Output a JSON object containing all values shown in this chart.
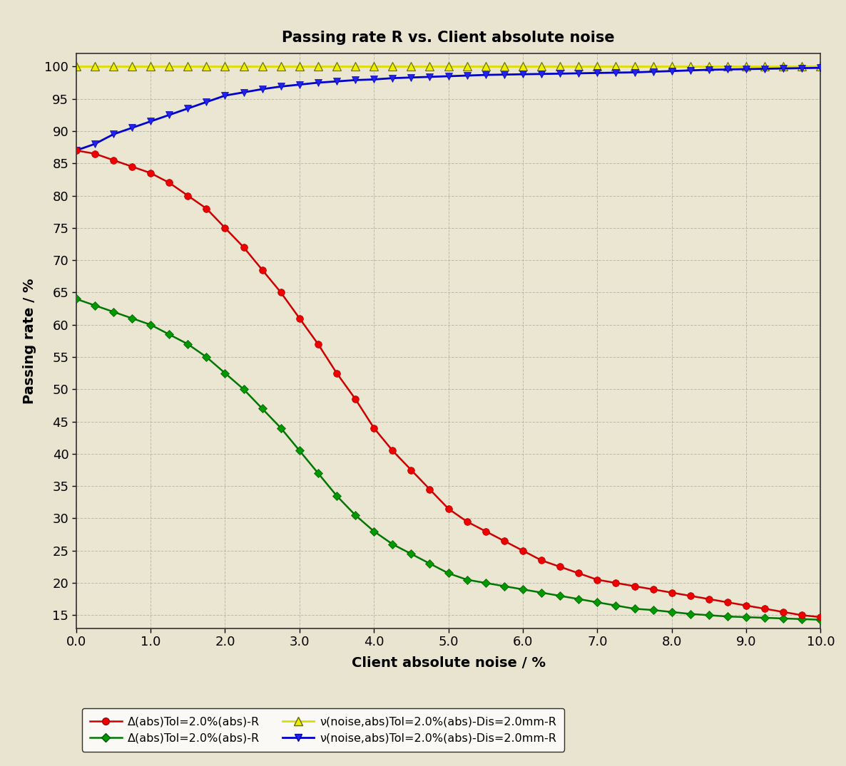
{
  "title": "Passing rate R vs. Client absolute noise",
  "xlabel": "Client absolute noise / %",
  "ylabel": "Passing rate / %",
  "background_color": "#e8e4d0",
  "plot_bg_color": "#eae6d2",
  "xlim": [
    0.0,
    10.0
  ],
  "ylim": [
    13,
    102
  ],
  "yticks": [
    15,
    20,
    25,
    30,
    35,
    40,
    45,
    50,
    55,
    60,
    65,
    70,
    75,
    80,
    85,
    90,
    95,
    100
  ],
  "xticks": [
    0.0,
    1.0,
    2.0,
    3.0,
    4.0,
    5.0,
    6.0,
    7.0,
    8.0,
    9.0,
    10.0
  ],
  "red_x": [
    0.0,
    0.25,
    0.5,
    0.75,
    1.0,
    1.25,
    1.5,
    1.75,
    2.0,
    2.25,
    2.5,
    2.75,
    3.0,
    3.25,
    3.5,
    3.75,
    4.0,
    4.25,
    4.5,
    4.75,
    5.0,
    5.25,
    5.5,
    5.75,
    6.0,
    6.25,
    6.5,
    6.75,
    7.0,
    7.25,
    7.5,
    7.75,
    8.0,
    8.25,
    8.5,
    8.75,
    9.0,
    9.25,
    9.5,
    9.75,
    10.0
  ],
  "red_y": [
    87.0,
    86.5,
    85.5,
    84.5,
    83.5,
    82.0,
    80.0,
    78.0,
    75.0,
    72.0,
    68.5,
    65.0,
    61.0,
    57.0,
    52.5,
    48.5,
    44.0,
    40.5,
    37.5,
    34.5,
    31.5,
    29.5,
    28.0,
    26.5,
    25.0,
    23.5,
    22.5,
    21.5,
    20.5,
    20.0,
    19.5,
    19.0,
    18.5,
    18.0,
    17.5,
    17.0,
    16.5,
    16.0,
    15.5,
    15.0,
    14.7
  ],
  "green_x": [
    0.0,
    0.25,
    0.5,
    0.75,
    1.0,
    1.25,
    1.5,
    1.75,
    2.0,
    2.25,
    2.5,
    2.75,
    3.0,
    3.25,
    3.5,
    3.75,
    4.0,
    4.25,
    4.5,
    4.75,
    5.0,
    5.25,
    5.5,
    5.75,
    6.0,
    6.25,
    6.5,
    6.75,
    7.0,
    7.25,
    7.5,
    7.75,
    8.0,
    8.25,
    8.5,
    8.75,
    9.0,
    9.25,
    9.5,
    9.75,
    10.0
  ],
  "green_y": [
    64.0,
    63.0,
    62.0,
    61.0,
    60.0,
    58.5,
    57.0,
    55.0,
    52.5,
    50.0,
    47.0,
    44.0,
    40.5,
    37.0,
    33.5,
    30.5,
    28.0,
    26.0,
    24.5,
    23.0,
    21.5,
    20.5,
    20.0,
    19.5,
    19.0,
    18.5,
    18.0,
    17.5,
    17.0,
    16.5,
    16.0,
    15.8,
    15.5,
    15.2,
    15.0,
    14.8,
    14.7,
    14.6,
    14.5,
    14.4,
    14.3
  ],
  "yellow_x": [
    0.0,
    0.25,
    0.5,
    0.75,
    1.0,
    1.25,
    1.5,
    1.75,
    2.0,
    2.25,
    2.5,
    2.75,
    3.0,
    3.25,
    3.5,
    3.75,
    4.0,
    4.25,
    4.5,
    4.75,
    5.0,
    5.25,
    5.5,
    5.75,
    6.0,
    6.25,
    6.5,
    6.75,
    7.0,
    7.25,
    7.5,
    7.75,
    8.0,
    8.25,
    8.5,
    8.75,
    9.0,
    9.25,
    9.5,
    9.75,
    10.0
  ],
  "yellow_y": [
    100.0,
    100.0,
    100.0,
    100.0,
    100.0,
    100.0,
    100.0,
    100.0,
    100.0,
    100.0,
    100.0,
    100.0,
    100.0,
    100.0,
    100.0,
    100.0,
    100.0,
    100.0,
    100.0,
    100.0,
    100.0,
    100.0,
    100.0,
    100.0,
    100.0,
    100.0,
    100.0,
    100.0,
    100.0,
    100.0,
    100.0,
    100.0,
    100.0,
    100.0,
    100.0,
    100.0,
    100.0,
    100.0,
    100.0,
    100.0,
    100.0
  ],
  "blue_x": [
    0.0,
    0.25,
    0.5,
    0.75,
    1.0,
    1.25,
    1.5,
    1.75,
    2.0,
    2.25,
    2.5,
    2.75,
    3.0,
    3.25,
    3.5,
    3.75,
    4.0,
    4.25,
    4.5,
    4.75,
    5.0,
    5.25,
    5.5,
    5.75,
    6.0,
    6.25,
    6.5,
    6.75,
    7.0,
    7.25,
    7.5,
    7.75,
    8.0,
    8.25,
    8.5,
    8.75,
    9.0,
    9.25,
    9.5,
    9.75,
    10.0
  ],
  "blue_y": [
    87.0,
    88.0,
    89.5,
    90.5,
    91.5,
    92.5,
    93.5,
    94.5,
    95.5,
    96.0,
    96.5,
    96.9,
    97.2,
    97.5,
    97.7,
    97.9,
    98.0,
    98.2,
    98.3,
    98.4,
    98.5,
    98.6,
    98.7,
    98.75,
    98.8,
    98.85,
    98.9,
    98.95,
    99.0,
    99.05,
    99.1,
    99.2,
    99.3,
    99.4,
    99.5,
    99.55,
    99.6,
    99.65,
    99.7,
    99.75,
    99.8
  ],
  "legend_labels": [
    "Δ(abs)Tol=2.0%(abs)-R",
    "Δ(abs)Tol=2.0%(abs)-R",
    "ν(noise,abs)Tol=2.0%(abs)-Dis=2.0mm-R",
    "ν(noise,abs)Tol=2.0%(abs)-Dis=2.0mm-R"
  ]
}
